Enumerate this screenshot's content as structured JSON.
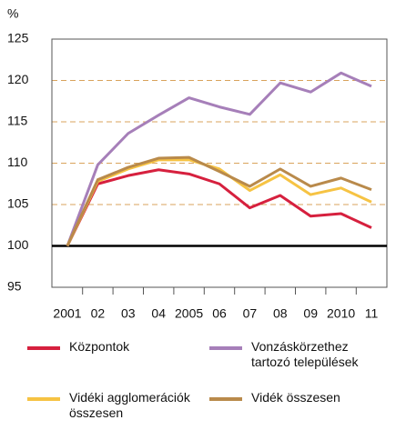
{
  "chart_data": {
    "type": "line",
    "unit_label": "%",
    "categories": [
      "2001",
      "02",
      "03",
      "04",
      "2005",
      "06",
      "07",
      "08",
      "09",
      "2010",
      "11"
    ],
    "series": [
      {
        "name": "Központok",
        "color": "#d6203e",
        "values": [
          100,
          107.5,
          108.5,
          109.2,
          108.7,
          107.5,
          104.6,
          106.1,
          103.6,
          103.9,
          102.2
        ]
      },
      {
        "name": "Vonzáskörzethez tartozó települések",
        "color": "#a67fb9",
        "values": [
          100,
          109.8,
          113.6,
          115.8,
          117.9,
          116.8,
          115.9,
          119.7,
          118.6,
          120.9,
          119.3
        ]
      },
      {
        "name": "Vidéki agglomerációk összesen",
        "color": "#f6c343",
        "values": [
          100,
          107.8,
          109.3,
          110.4,
          110.4,
          109.3,
          106.7,
          108.6,
          106.2,
          107.0,
          105.3
        ]
      },
      {
        "name": "Vidék összesen",
        "color": "#b98a4b",
        "values": [
          100,
          108.0,
          109.5,
          110.6,
          110.7,
          109.0,
          107.2,
          109.3,
          107.2,
          108.2,
          106.8
        ]
      }
    ],
    "ylim": [
      95,
      125
    ],
    "yticks": [
      95,
      100,
      105,
      110,
      115,
      120,
      125
    ],
    "baseline": 100,
    "grid": true,
    "grid_color": "#d9a35c"
  }
}
